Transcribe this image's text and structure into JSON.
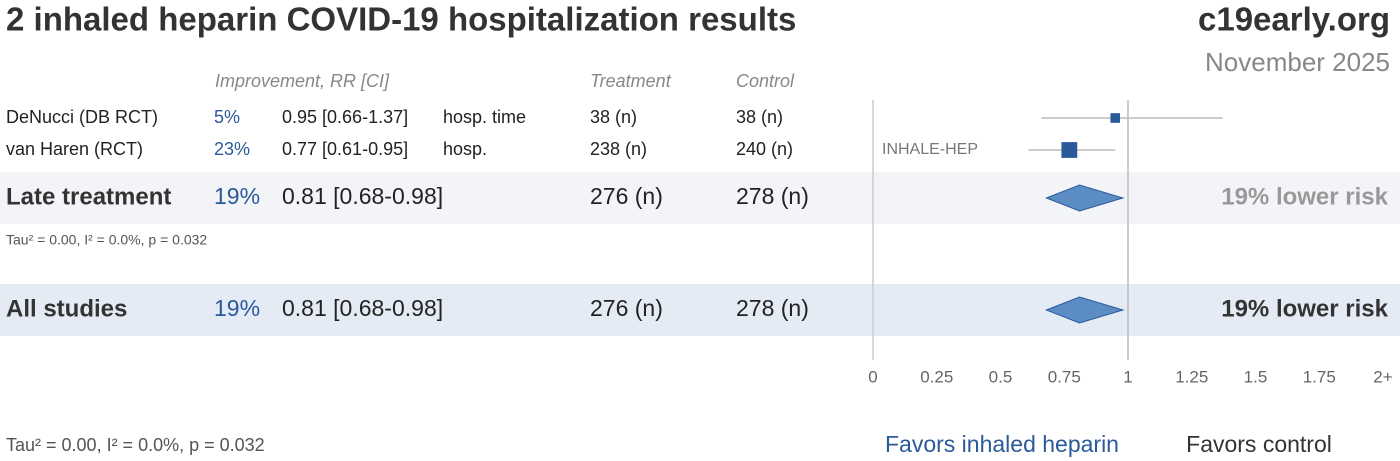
{
  "chart_data": {
    "type": "forest",
    "title": "2 inhaled heparin COVID-19 hospitalization results",
    "source": "c19early.org",
    "date": "November 2025",
    "headers": [
      "Improvement, RR [CI]",
      "Treatment",
      "Control"
    ],
    "studies": {
      "names": [
        "DeNucci (DB RCT)",
        "van Haren (RCT)"
      ],
      "improvement": [
        5,
        23
      ],
      "improvement_labels": [
        "5%",
        "23%"
      ],
      "rr": [
        0.95,
        0.77
      ],
      "ci_low": [
        0.66,
        0.61
      ],
      "ci_high": [
        1.37,
        0.95
      ],
      "rr_labels": [
        "0.95 [0.66-1.37]",
        "0.77 [0.61-0.95]"
      ],
      "outcomes": [
        "hosp. time",
        "hosp."
      ],
      "treatment": [
        "38 (n)",
        "238 (n)"
      ],
      "control": [
        "38 (n)",
        "240 (n)"
      ],
      "annotations": [
        null,
        "INHALE-HEP"
      ]
    },
    "pooled": [
      {
        "name": "Late treatment",
        "improvement": 19,
        "improvement_label": "19%",
        "rr": 0.81,
        "ci_low": 0.68,
        "ci_high": 0.98,
        "rr_label": "0.81 [0.68-0.98]",
        "treatment": "276 (n)",
        "control": "278 (n)",
        "summary": "19% lower risk",
        "stats": "Tau² = 0.00, I² = 0.0%, p = 0.032"
      },
      {
        "name": "All studies",
        "improvement": 19,
        "improvement_label": "19%",
        "rr": 0.81,
        "ci_low": 0.68,
        "ci_high": 0.98,
        "rr_label": "0.81 [0.68-0.98]",
        "treatment": "276 (n)",
        "control": "278 (n)",
        "summary": "19% lower risk",
        "stats": "Tau² = 0.00, I² = 0.0%, p = 0.032"
      }
    ],
    "xlim": [
      0,
      2
    ],
    "xticks": [
      0,
      0.25,
      0.5,
      0.75,
      1,
      1.25,
      1.5,
      1.75,
      {
        "value": 2,
        "label": "2+"
      }
    ],
    "favors": [
      "Favors inhaled heparin",
      "Favors control"
    ],
    "marker_color": "#2a5a9a",
    "diamond_color": "#5b8cc4"
  }
}
